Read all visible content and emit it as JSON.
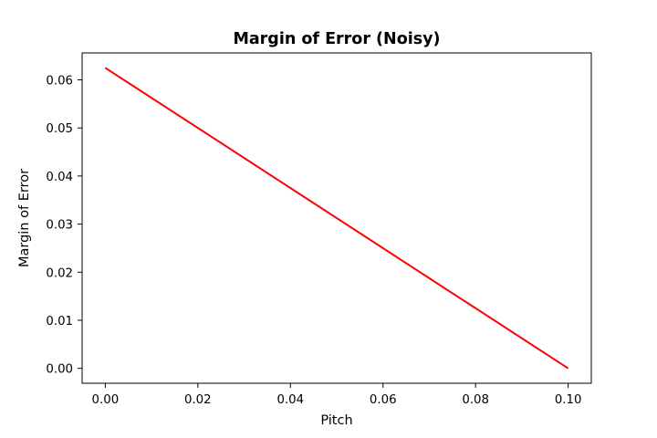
{
  "chart_data": {
    "type": "line",
    "title": "Margin of Error (Noisy)",
    "xlabel": "Pitch",
    "ylabel": "Margin of Error",
    "xlim": [
      -0.005,
      0.105
    ],
    "ylim": [
      -0.0031,
      0.0656
    ],
    "xticks": [
      0.0,
      0.02,
      0.04,
      0.06,
      0.08,
      0.1
    ],
    "xtick_labels": [
      "0.00",
      "0.02",
      "0.04",
      "0.06",
      "0.08",
      "0.10"
    ],
    "yticks": [
      0.0,
      0.01,
      0.02,
      0.03,
      0.04,
      0.05,
      0.06
    ],
    "ytick_labels": [
      "0.00",
      "0.01",
      "0.02",
      "0.03",
      "0.04",
      "0.05",
      "0.06"
    ],
    "grid": false,
    "series": [
      {
        "color": "#ff0000",
        "x": [
          0.0,
          0.1
        ],
        "y": [
          0.0625,
          0.0
        ]
      }
    ]
  }
}
